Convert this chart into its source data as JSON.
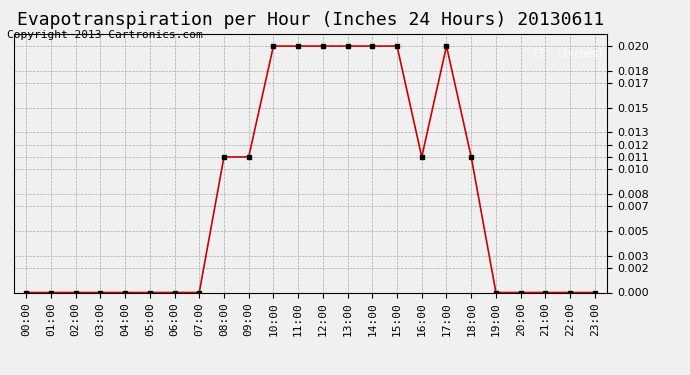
{
  "title": "Evapotranspiration per Hour (Inches 24 Hours) 20130611",
  "copyright": "Copyright 2013 Cartronics.com",
  "legend_label": "ET  (Inches)",
  "legend_bg": "#cc0000",
  "legend_text_color": "#ffffff",
  "x_labels": [
    "00:00",
    "01:00",
    "02:00",
    "03:00",
    "04:00",
    "05:00",
    "06:00",
    "07:00",
    "08:00",
    "09:00",
    "10:00",
    "11:00",
    "12:00",
    "13:00",
    "14:00",
    "15:00",
    "16:00",
    "17:00",
    "18:00",
    "19:00",
    "20:00",
    "21:00",
    "22:00",
    "23:00"
  ],
  "y_values": [
    0.0,
    0.0,
    0.0,
    0.0,
    0.0,
    0.0,
    0.0,
    0.0,
    0.011,
    0.011,
    0.02,
    0.02,
    0.02,
    0.02,
    0.02,
    0.02,
    0.011,
    0.02,
    0.011,
    0.0,
    0.0,
    0.0,
    0.0,
    0.0
  ],
  "line_color": "#cc0000",
  "marker_color": "#000000",
  "bg_color": "#f0f0f0",
  "grid_color": "#aaaaaa",
  "ylim": [
    0,
    0.021
  ],
  "yticks": [
    0.0,
    0.002,
    0.003,
    0.005,
    0.007,
    0.008,
    0.01,
    0.011,
    0.012,
    0.013,
    0.015,
    0.017,
    0.018,
    0.02
  ],
  "title_fontsize": 13,
  "copyright_fontsize": 8,
  "tick_fontsize": 8
}
